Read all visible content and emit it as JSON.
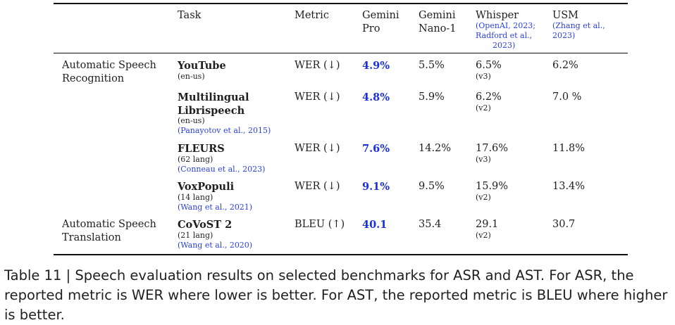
{
  "headers": {
    "task": "Task",
    "metric": "Metric",
    "gemini_pro": [
      "Gemini",
      "Pro"
    ],
    "gemini_nano": [
      "Gemini",
      "Nano-1"
    ],
    "whisper": "Whisper",
    "whisper_cite": [
      "(OpenAI, 2023;",
      "Radford et al.,",
      "2023)"
    ],
    "usm": "USM",
    "usm_cite": [
      "(Zhang et al.,",
      "2023)"
    ]
  },
  "categories": {
    "asr": [
      "Automatic Speech",
      "Recognition"
    ],
    "ast": [
      "Automatic Speech",
      "Translation"
    ]
  },
  "rows": [
    {
      "task": [
        "YouTube"
      ],
      "detail": "(en-us)",
      "cite": "",
      "metric": "WER (↓)",
      "gemini_pro": "4.9%",
      "gemini_nano": "5.5%",
      "whisper": "6.5%",
      "whisper_version": "(v3)",
      "usm": "6.2%"
    },
    {
      "task": [
        "Multilingual",
        "Librispeech"
      ],
      "detail": "(en-us)",
      "cite": "(Panayotov et al., 2015)",
      "metric": "WER (↓)",
      "gemini_pro": "4.8%",
      "gemini_nano": "5.9%",
      "whisper": "6.2%",
      "whisper_version": "(v2)",
      "usm": "7.0 %"
    },
    {
      "task": [
        "FLEURS"
      ],
      "detail": "(62 lang)",
      "cite": "(Conneau et al., 2023)",
      "metric": "WER (↓)",
      "gemini_pro": "7.6%",
      "gemini_nano": "14.2%",
      "whisper": "17.6%",
      "whisper_version": "(v3)",
      "usm": "11.8%"
    },
    {
      "task": [
        "VoxPopuli"
      ],
      "detail": "(14 lang)",
      "cite": "(Wang et al., 2021)",
      "metric": "WER (↓)",
      "gemini_pro": "9.1%",
      "gemini_nano": "9.5%",
      "whisper": "15.9%",
      "whisper_version": "(v2)",
      "usm": "13.4%"
    },
    {
      "task": [
        "CoVoST 2"
      ],
      "detail": "(21 lang)",
      "cite": "(Wang et al., 2020)",
      "metric": "BLEU (↑)",
      "gemini_pro": "40.1",
      "gemini_nano": "35.4",
      "whisper": "29.1",
      "whisper_version": "(v2)",
      "usm": "30.7"
    }
  ],
  "caption": "Table 11 | Speech evaluation results on selected benchmarks for ASR and AST. For ASR, the reported metric is WER where lower is better. For AST, the reported metric is BLEU where higher is better.",
  "colors": {
    "best": "#1b2fe3",
    "cite": "#2a3fe0",
    "text": "#1f1f1f"
  }
}
